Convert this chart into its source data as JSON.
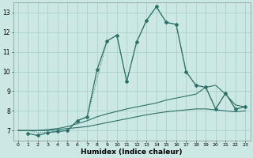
{
  "xlabel": "Humidex (Indice chaleur)",
  "bg_color": "#cce8e4",
  "grid_color": "#a8ccca",
  "line_color": "#2d7068",
  "xlim": [
    -0.5,
    23.5
  ],
  "ylim": [
    6.5,
    13.5
  ],
  "xticks": [
    0,
    1,
    2,
    3,
    4,
    5,
    6,
    7,
    8,
    9,
    10,
    11,
    12,
    13,
    14,
    15,
    16,
    17,
    18,
    19,
    20,
    21,
    22,
    23
  ],
  "yticks": [
    7,
    8,
    9,
    10,
    11,
    12,
    13
  ],
  "line1_x": [
    1,
    2,
    3,
    4,
    5,
    6,
    7,
    8,
    9,
    10,
    11,
    12,
    13,
    14,
    15,
    16,
    17,
    18,
    19,
    20,
    21,
    22,
    23
  ],
  "line1_y": [
    6.85,
    6.75,
    6.9,
    6.95,
    7.0,
    7.5,
    7.7,
    10.1,
    11.55,
    11.85,
    9.5,
    11.5,
    12.6,
    13.3,
    12.5,
    12.4,
    10.0,
    9.3,
    9.2,
    8.1,
    8.9,
    8.1,
    8.2
  ],
  "line2_x": [
    0,
    1,
    2,
    3,
    4,
    5,
    6,
    7,
    8,
    9,
    10,
    11,
    12,
    13,
    14,
    15,
    16,
    17,
    18,
    19,
    20,
    21,
    22,
    23
  ],
  "line2_y": [
    7.0,
    7.0,
    7.0,
    7.05,
    7.1,
    7.2,
    7.35,
    7.5,
    7.7,
    7.85,
    7.97,
    8.1,
    8.2,
    8.3,
    8.4,
    8.55,
    8.65,
    8.75,
    8.85,
    9.2,
    9.3,
    8.85,
    8.3,
    8.2
  ],
  "line3_x": [
    0,
    1,
    2,
    3,
    4,
    5,
    6,
    7,
    8,
    9,
    10,
    11,
    12,
    13,
    14,
    15,
    16,
    17,
    18,
    19,
    20,
    21,
    22,
    23
  ],
  "line3_y": [
    7.0,
    7.0,
    7.0,
    7.0,
    7.05,
    7.1,
    7.15,
    7.2,
    7.3,
    7.4,
    7.5,
    7.6,
    7.7,
    7.8,
    7.88,
    7.95,
    8.0,
    8.05,
    8.1,
    8.1,
    8.05,
    8.0,
    7.95,
    8.0
  ],
  "line4_x": [
    0,
    1,
    2,
    3,
    4,
    5,
    6,
    7,
    9,
    10,
    11,
    12,
    13,
    14,
    15,
    16,
    17,
    18,
    19,
    20,
    21,
    22,
    23
  ],
  "line4_y": [
    7.0,
    7.0,
    6.9,
    6.9,
    6.95,
    7.0,
    7.5,
    7.7,
    11.55,
    11.85,
    9.5,
    11.5,
    12.6,
    13.3,
    12.5,
    12.4,
    10.0,
    9.3,
    9.2,
    8.1,
    8.9,
    8.1,
    8.2
  ]
}
